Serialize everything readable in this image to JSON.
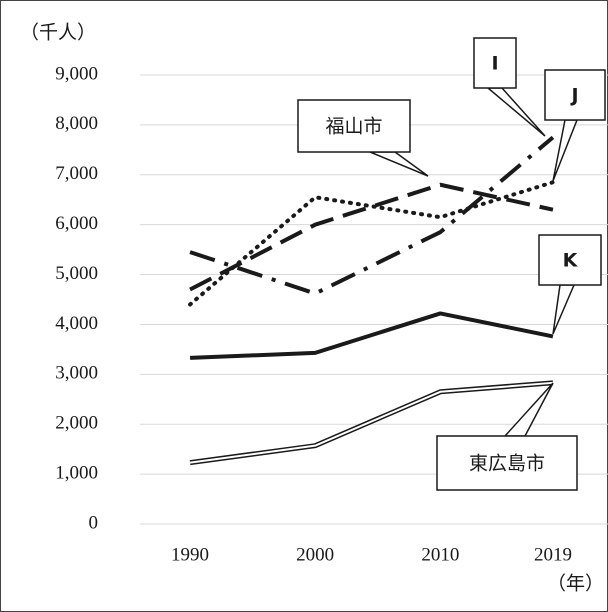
{
  "chart_data": {
    "type": "line",
    "ylabel": "（千人）",
    "xlabel": "（年）",
    "x": [
      1990,
      2000,
      2010,
      2019
    ],
    "xlim": [
      1986,
      2023.4
    ],
    "xticks": [
      1990,
      2000,
      2010,
      2019
    ],
    "ylim": [
      0,
      9000
    ],
    "yticks": [
      0,
      {
        "value": 1000,
        "label": "1,000"
      },
      {
        "value": 2000,
        "label": "2,000"
      },
      {
        "value": 3000,
        "label": "3,000"
      },
      {
        "value": 4000,
        "label": "4,000"
      },
      {
        "value": 5000,
        "label": "5,000"
      },
      {
        "value": 6000,
        "label": "6,000"
      },
      {
        "value": 7000,
        "label": "7,000"
      },
      {
        "value": 8000,
        "label": "8,000"
      },
      {
        "value": 9000,
        "label": "9,000"
      }
    ],
    "grid": true,
    "series": [
      {
        "name": "I",
        "color": "#1a1a1a",
        "style": "dashdot",
        "values": [
          5450,
          4620,
          5850,
          7750
        ]
      },
      {
        "name": "J",
        "color": "#1a1a1a",
        "style": "dotted",
        "values": [
          4400,
          6550,
          6150,
          6850
        ]
      },
      {
        "name": "福山市",
        "color": "#1a1a1a",
        "style": "dashed",
        "values": [
          4700,
          6000,
          6800,
          6300
        ]
      },
      {
        "name": "K",
        "color": "#1a1a1a",
        "style": "solid",
        "values": [
          3330,
          3430,
          4220,
          3760
        ]
      },
      {
        "name": "東広島市",
        "color": "#1a1a1a",
        "style": "double",
        "values": [
          1230,
          1570,
          2650,
          2830
        ]
      }
    ]
  }
}
